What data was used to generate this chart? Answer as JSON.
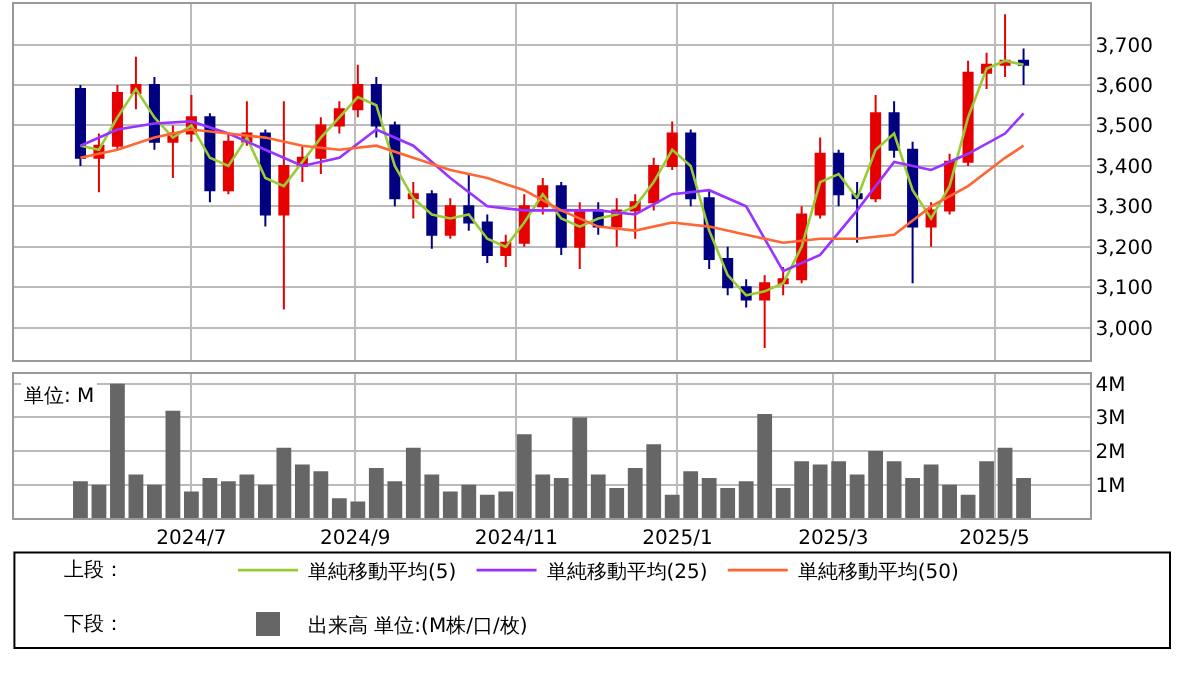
{
  "chart_data": [
    {
      "type": "candlestick",
      "x": [
        "2024-05-20",
        "2024-05-27",
        "2024-06-03",
        "2024-06-10",
        "2024-06-17",
        "2024-06-24",
        "2024-07-01",
        "2024-07-08",
        "2024-07-15",
        "2024-07-22",
        "2024-07-29",
        "2024-08-05",
        "2024-08-12",
        "2024-08-19",
        "2024-08-26",
        "2024-09-02",
        "2024-09-09",
        "2024-09-16",
        "2024-09-23",
        "2024-09-30",
        "2024-10-07",
        "2024-10-14",
        "2024-10-21",
        "2024-10-28",
        "2024-11-04",
        "2024-11-11",
        "2024-11-18",
        "2024-11-25",
        "2024-12-02",
        "2024-12-09",
        "2024-12-16",
        "2024-12-23",
        "2024-12-30",
        "2025-01-06",
        "2025-01-13",
        "2025-01-20",
        "2025-01-27",
        "2025-02-03",
        "2025-02-10",
        "2025-02-17",
        "2025-02-24",
        "2025-03-03",
        "2025-03-10",
        "2025-03-17",
        "2025-03-24",
        "2025-03-31",
        "2025-04-07",
        "2025-04-14",
        "2025-04-21",
        "2025-04-28",
        "2025-05-05",
        "2025-05-12"
      ],
      "ohlc": [
        [
          3590,
          3600,
          3400,
          3420
        ],
        [
          3420,
          3480,
          3335,
          3450
        ],
        [
          3450,
          3600,
          3440,
          3580
        ],
        [
          3580,
          3670,
          3540,
          3600
        ],
        [
          3600,
          3620,
          3440,
          3460
        ],
        [
          3460,
          3500,
          3370,
          3480
        ],
        [
          3480,
          3575,
          3460,
          3520
        ],
        [
          3520,
          3530,
          3310,
          3340
        ],
        [
          3340,
          3480,
          3330,
          3460
        ],
        [
          3460,
          3560,
          3450,
          3480
        ],
        [
          3480,
          3490,
          3250,
          3280
        ],
        [
          3280,
          3560,
          3045,
          3400
        ],
        [
          3400,
          3450,
          3360,
          3420
        ],
        [
          3420,
          3520,
          3380,
          3500
        ],
        [
          3500,
          3560,
          3480,
          3540
        ],
        [
          3540,
          3650,
          3520,
          3600
        ],
        [
          3600,
          3620,
          3470,
          3500
        ],
        [
          3500,
          3510,
          3300,
          3320
        ],
        [
          3320,
          3360,
          3270,
          3330
        ],
        [
          3330,
          3340,
          3195,
          3230
        ],
        [
          3230,
          3320,
          3220,
          3300
        ],
        [
          3300,
          3380,
          3240,
          3260
        ],
        [
          3260,
          3280,
          3160,
          3180
        ],
        [
          3180,
          3230,
          3150,
          3210
        ],
        [
          3210,
          3330,
          3200,
          3300
        ],
        [
          3300,
          3370,
          3280,
          3350
        ],
        [
          3350,
          3360,
          3180,
          3200
        ],
        [
          3200,
          3310,
          3145,
          3290
        ],
        [
          3290,
          3310,
          3230,
          3250
        ],
        [
          3250,
          3320,
          3200,
          3290
        ],
        [
          3290,
          3330,
          3220,
          3310
        ],
        [
          3310,
          3420,
          3290,
          3400
        ],
        [
          3400,
          3510,
          3390,
          3480
        ],
        [
          3480,
          3490,
          3300,
          3320
        ],
        [
          3320,
          3340,
          3145,
          3170
        ],
        [
          3170,
          3200,
          3080,
          3100
        ],
        [
          3100,
          3120,
          3050,
          3070
        ],
        [
          3070,
          3130,
          2950,
          3110
        ],
        [
          3110,
          3150,
          3080,
          3120
        ],
        [
          3120,
          3300,
          3110,
          3280
        ],
        [
          3280,
          3470,
          3270,
          3430
        ],
        [
          3430,
          3440,
          3300,
          3330
        ],
        [
          3330,
          3360,
          3210,
          3320
        ],
        [
          3320,
          3575,
          3310,
          3530
        ],
        [
          3530,
          3560,
          3420,
          3440
        ],
        [
          3440,
          3460,
          3110,
          3250
        ],
        [
          3250,
          3310,
          3200,
          3290
        ],
        [
          3290,
          3430,
          3280,
          3410
        ],
        [
          3410,
          3660,
          3400,
          3630
        ],
        [
          3630,
          3680,
          3590,
          3650
        ],
        [
          3650,
          3775,
          3620,
          3660
        ],
        [
          3660,
          3690,
          3600,
          3650
        ]
      ],
      "colors": [
        "#000080",
        "#e60000",
        "#e60000",
        "#e60000",
        "#000080",
        "#e60000",
        "#e60000",
        "#000080",
        "#e60000",
        "#e60000",
        "#000080",
        "#e60000",
        "#e60000",
        "#e60000",
        "#e60000",
        "#e60000",
        "#000080",
        "#000080",
        "#e60000",
        "#000080",
        "#e60000",
        "#000080",
        "#000080",
        "#e60000",
        "#e60000",
        "#e60000",
        "#000080",
        "#e60000",
        "#000080",
        "#e60000",
        "#e60000",
        "#e60000",
        "#e60000",
        "#000080",
        "#000080",
        "#000080",
        "#000080",
        "#e60000",
        "#e60000",
        "#e60000",
        "#e60000",
        "#000080",
        "#000080",
        "#e60000",
        "#000080",
        "#000080",
        "#e60000",
        "#e60000",
        "#e60000",
        "#e60000",
        "#e60000",
        "#000080"
      ],
      "series": [
        {
          "type": "line",
          "name": "単純移動平均(5)",
          "color": "#99cc33",
          "x": [
            "2024-05-20",
            "2024-05-27",
            "2024-06-03",
            "2024-06-10",
            "2024-06-17",
            "2024-06-24",
            "2024-07-01",
            "2024-07-08",
            "2024-07-15",
            "2024-07-22",
            "2024-07-29",
            "2024-08-05",
            "2024-08-12",
            "2024-08-19",
            "2024-08-26",
            "2024-09-02",
            "2024-09-09",
            "2024-09-16",
            "2024-09-23",
            "2024-09-30",
            "2024-10-07",
            "2024-10-14",
            "2024-10-21",
            "2024-10-28",
            "2024-11-04",
            "2024-11-11",
            "2024-11-18",
            "2024-11-25",
            "2024-12-02",
            "2024-12-09",
            "2024-12-16",
            "2024-12-23",
            "2024-12-30",
            "2025-01-06",
            "2025-01-13",
            "2025-01-20",
            "2025-01-27",
            "2025-02-03",
            "2025-02-10",
            "2025-02-17",
            "2025-02-24",
            "2025-03-03",
            "2025-03-10",
            "2025-03-17",
            "2025-03-24",
            "2025-03-31",
            "2025-04-07",
            "2025-04-14",
            "2025-04-21",
            "2025-04-28",
            "2025-05-05",
            "2025-05-12"
          ],
          "values": [
            3450,
            3440,
            3520,
            3590,
            3520,
            3470,
            3500,
            3420,
            3400,
            3470,
            3370,
            3350,
            3410,
            3470,
            3520,
            3570,
            3550,
            3400,
            3320,
            3280,
            3270,
            3280,
            3220,
            3200,
            3260,
            3330,
            3270,
            3250,
            3270,
            3280,
            3300,
            3360,
            3440,
            3400,
            3240,
            3130,
            3080,
            3090,
            3110,
            3200,
            3360,
            3380,
            3320,
            3440,
            3480,
            3340,
            3270,
            3350,
            3520,
            3640,
            3660,
            3650
          ]
        },
        {
          "type": "line",
          "name": "単純移動平均(25)",
          "color": "#9933ff",
          "x": [
            "2024-05-20",
            "2024-06-03",
            "2024-06-17",
            "2024-07-01",
            "2024-07-15",
            "2024-07-29",
            "2024-08-12",
            "2024-08-26",
            "2024-09-09",
            "2024-09-23",
            "2024-10-07",
            "2024-10-21",
            "2024-11-04",
            "2024-11-18",
            "2024-12-02",
            "2024-12-16",
            "2024-12-30",
            "2025-01-13",
            "2025-01-27",
            "2025-02-10",
            "2025-02-24",
            "2025-03-10",
            "2025-03-24",
            "2025-04-07",
            "2025-04-21",
            "2025-05-05",
            "2025-05-12"
          ],
          "values": [
            3450,
            3490,
            3505,
            3510,
            3480,
            3440,
            3400,
            3420,
            3490,
            3450,
            3370,
            3300,
            3290,
            3290,
            3290,
            3280,
            3330,
            3340,
            3300,
            3140,
            3180,
            3290,
            3410,
            3390,
            3430,
            3480,
            3530
          ]
        },
        {
          "type": "line",
          "name": "単純移動平均(50)",
          "color": "#ff6633",
          "x": [
            "2024-05-20",
            "2024-06-03",
            "2024-06-17",
            "2024-07-01",
            "2024-07-15",
            "2024-07-29",
            "2024-08-12",
            "2024-08-26",
            "2024-09-09",
            "2024-09-23",
            "2024-10-07",
            "2024-10-21",
            "2024-11-04",
            "2024-11-18",
            "2024-12-02",
            "2024-12-16",
            "2024-12-30",
            "2025-01-13",
            "2025-01-27",
            "2025-02-10",
            "2025-02-24",
            "2025-03-10",
            "2025-03-24",
            "2025-04-07",
            "2025-04-21",
            "2025-05-05",
            "2025-05-12"
          ],
          "values": [
            3420,
            3440,
            3470,
            3490,
            3480,
            3470,
            3450,
            3440,
            3450,
            3420,
            3390,
            3370,
            3340,
            3290,
            3250,
            3240,
            3260,
            3250,
            3230,
            3210,
            3220,
            3220,
            3230,
            3300,
            3350,
            3420,
            3450
          ]
        }
      ],
      "xlim": [
        "2024-04-25",
        "2025-06-06"
      ],
      "xticks": [
        {
          "value": "2024-07-01",
          "label": null
        },
        {
          "value": "2024-09-01",
          "label": null
        },
        {
          "value": "2024-11-01",
          "label": null
        },
        {
          "value": "2025-01-01",
          "label": null
        },
        {
          "value": "2025-03-01",
          "label": null
        },
        {
          "value": "2025-05-01",
          "label": null
        }
      ],
      "ylim": [
        2920,
        3800
      ],
      "yticks": [
        {
          "value": 3000,
          "label": "3,000"
        },
        {
          "value": 3100,
          "label": "3,100"
        },
        {
          "value": 3200,
          "label": "3,200"
        },
        {
          "value": 3300,
          "label": "3,300"
        },
        {
          "value": 3400,
          "label": "3,400"
        },
        {
          "value": 3500,
          "label": "3,500"
        },
        {
          "value": 3600,
          "label": "3,600"
        },
        {
          "value": 3700,
          "label": "3,700"
        }
      ],
      "tick_labels": "y",
      "grid": true,
      "legend": "bottom",
      "annotations": [
        "上段："
      ]
    },
    {
      "type": "bar",
      "x": [
        "2024-05-20",
        "2024-05-27",
        "2024-06-03",
        "2024-06-10",
        "2024-06-17",
        "2024-06-24",
        "2024-07-01",
        "2024-07-08",
        "2024-07-15",
        "2024-07-22",
        "2024-07-29",
        "2024-08-05",
        "2024-08-12",
        "2024-08-19",
        "2024-08-26",
        "2024-09-02",
        "2024-09-09",
        "2024-09-16",
        "2024-09-23",
        "2024-09-30",
        "2024-10-07",
        "2024-10-14",
        "2024-10-21",
        "2024-10-28",
        "2024-11-04",
        "2024-11-11",
        "2024-11-18",
        "2024-11-25",
        "2024-12-02",
        "2024-12-09",
        "2024-12-16",
        "2024-12-23",
        "2024-12-30",
        "2025-01-06",
        "2025-01-13",
        "2025-01-20",
        "2025-01-27",
        "2025-02-03",
        "2025-02-10",
        "2025-02-17",
        "2025-02-24",
        "2025-03-03",
        "2025-03-10",
        "2025-03-17",
        "2025-03-24",
        "2025-03-31",
        "2025-04-07",
        "2025-04-14",
        "2025-04-21",
        "2025-04-28",
        "2025-05-05",
        "2025-05-12"
      ],
      "series": [
        {
          "name": "出来高 単位:(M株/口/枚)",
          "color": "#666666",
          "values": [
            1.1,
            1.0,
            4.0,
            1.3,
            1.0,
            3.2,
            0.8,
            1.2,
            1.1,
            1.3,
            1.0,
            2.1,
            1.6,
            1.4,
            0.6,
            0.5,
            1.5,
            1.1,
            2.1,
            1.3,
            0.8,
            1.0,
            0.7,
            0.8,
            2.5,
            1.3,
            1.2,
            3.0,
            1.3,
            0.9,
            1.5,
            2.2,
            0.7,
            1.4,
            1.2,
            0.9,
            1.1,
            3.1,
            0.9,
            1.7,
            1.6,
            1.7,
            1.3,
            2.0,
            1.7,
            1.2,
            1.6,
            1.0,
            0.7,
            1.7,
            2.1,
            1.2
          ]
        }
      ],
      "xlim": [
        "2024-04-25",
        "2025-06-06"
      ],
      "xticks": [
        {
          "value": "2024-07-01",
          "label": "2024/7"
        },
        {
          "value": "2024-09-01",
          "label": "2024/9"
        },
        {
          "value": "2024-11-01",
          "label": "2024/11"
        },
        {
          "value": "2025-01-01",
          "label": "2025/1"
        },
        {
          "value": "2025-03-01",
          "label": "2025/3"
        },
        {
          "value": "2025-05-01",
          "label": "2025/5"
        }
      ],
      "ylim": [
        0,
        4.3
      ],
      "yticks": [
        {
          "value": 1,
          "label": "1M"
        },
        {
          "value": 2,
          "label": "2M"
        },
        {
          "value": 3,
          "label": "3M"
        },
        {
          "value": 4,
          "label": "4M"
        }
      ],
      "grid": true,
      "legend": "bottom",
      "annotations": [
        "単位: M",
        "下段："
      ]
    }
  ]
}
